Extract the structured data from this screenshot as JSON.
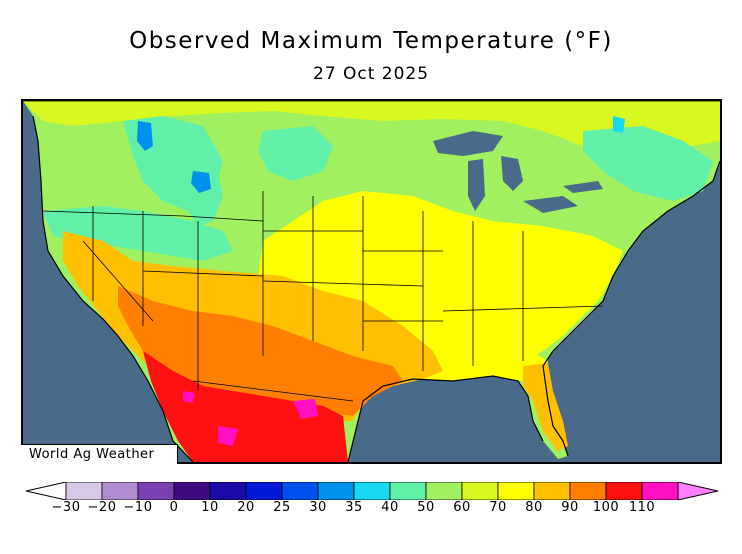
{
  "title": "Observed Maximum Temperature (°F)",
  "date": "27 Oct 2025",
  "credit": "World Ag Weather",
  "legend": {
    "labels": [
      "−30",
      "−20",
      "−10",
      "0",
      "10",
      "20",
      "25",
      "30",
      "35",
      "40",
      "50",
      "60",
      "70",
      "80",
      "90",
      "100",
      "110"
    ],
    "colors": [
      "#d8c8e8",
      "#b08cd0",
      "#7a3fb0",
      "#3e0a80",
      "#1a0aa8",
      "#0018d8",
      "#0050f0",
      "#0090f0",
      "#18d8f0",
      "#60f0a8",
      "#a0f060",
      "#d8f820",
      "#ffff00",
      "#ffc000",
      "#ff8000",
      "#ff1010",
      "#ff10c0"
    ],
    "low_cap_color": "#ffffff",
    "high_cap_color": "#ff80ff"
  },
  "map": {
    "ocean_color": "#4a6a8a",
    "lake_color": "#4a6a8a"
  }
}
